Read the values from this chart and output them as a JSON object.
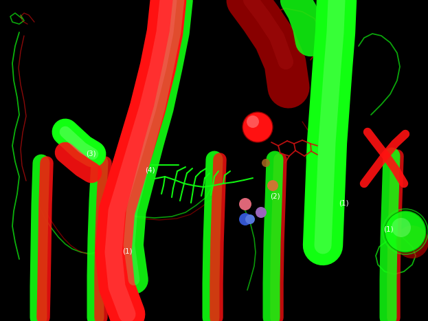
{
  "background_color": "#000000",
  "fig_width": 6.23,
  "fig_height": 4.67,
  "dpi": 100,
  "label_color": "#ffffff",
  "label_fontsize": 7.5,
  "bright_red": "#ff1111",
  "bright_green": "#11ff11",
  "mid_red": "#cc0000",
  "mid_green": "#00aa00",
  "dark_red": "#660000",
  "dark_green": "#004400",
  "dim_red": "#441111",
  "dim_green": "#114411"
}
